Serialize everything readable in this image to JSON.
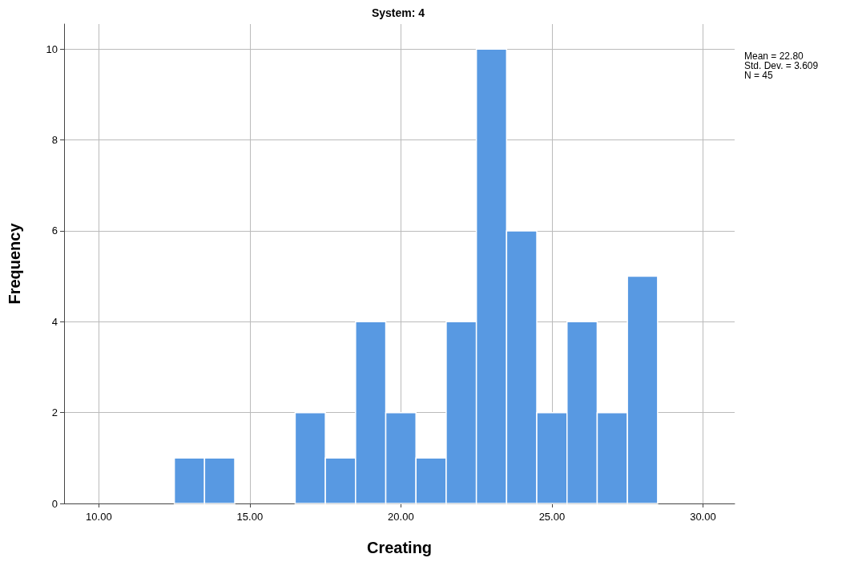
{
  "chart_data": {
    "type": "histogram",
    "title": "System: 4",
    "xlabel": "Creating",
    "ylabel": "Frequency",
    "bins": [
      12.5,
      13.5,
      14.5,
      15.5,
      16.5,
      17.5,
      18.5,
      19.5,
      20.5,
      21.5,
      22.5,
      23.5,
      24.5,
      25.5,
      26.5,
      27.5,
      28.5
    ],
    "values": [
      1,
      1,
      0,
      0,
      2,
      1,
      4,
      2,
      1,
      4,
      10,
      6,
      2,
      4,
      2,
      5
    ],
    "color": "#5899e2",
    "xlim": [
      8.85,
      31.05
    ],
    "xticks": [
      {
        "value": 10,
        "label": "10.00"
      },
      {
        "value": 15,
        "label": "15.00"
      },
      {
        "value": 20,
        "label": "20.00"
      },
      {
        "value": 25,
        "label": "25.00"
      },
      {
        "value": 30,
        "label": "30.00"
      }
    ],
    "ylim": [
      0,
      10.55
    ],
    "yticks": [
      0,
      2,
      4,
      6,
      8,
      10
    ],
    "grid": true,
    "annotations": [
      "Mean = 22.80",
      "Std. Dev. = 3.609",
      "N = 45"
    ]
  }
}
